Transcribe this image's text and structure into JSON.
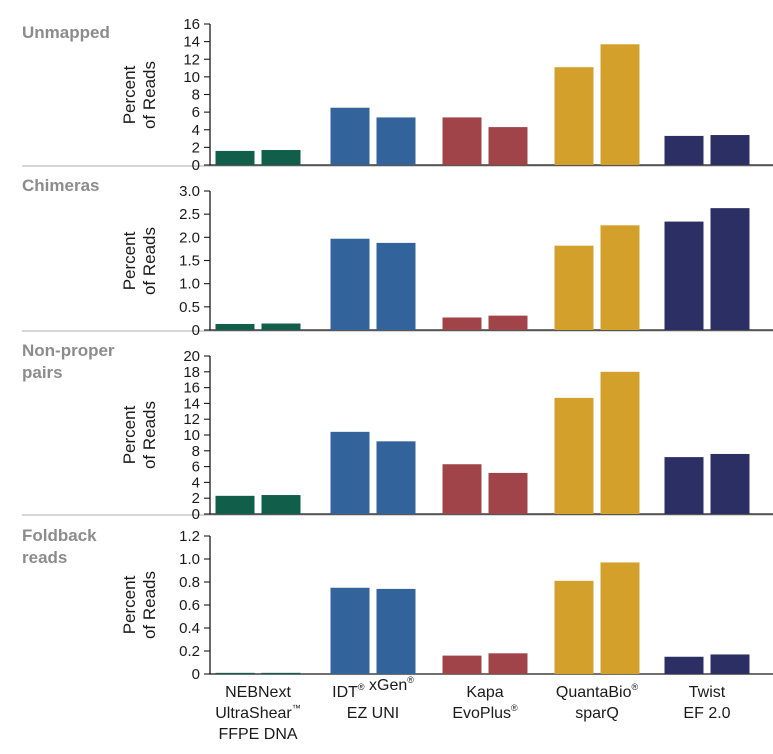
{
  "chart_data": [
    {
      "type": "bar",
      "title": "Unmapped",
      "title_lines": [
        "Unmapped"
      ],
      "ylabel_lines": [
        "Percent",
        "of Reads"
      ],
      "ylim": [
        0,
        16
      ],
      "yticks": [
        "0",
        "2",
        "4",
        "6",
        "8",
        "10",
        "12",
        "14",
        "16"
      ],
      "ytick_values": [
        0,
        2,
        4,
        6,
        8,
        10,
        12,
        14,
        16
      ],
      "values": [
        [
          1.6,
          1.7
        ],
        [
          6.5,
          5.4
        ],
        [
          5.4,
          4.3
        ],
        [
          11.1,
          13.7
        ],
        [
          3.3,
          3.4
        ]
      ]
    },
    {
      "type": "bar",
      "title": "Chimeras",
      "title_lines": [
        "Chimeras"
      ],
      "ylabel_lines": [
        "Percent",
        "of Reads"
      ],
      "ylim": [
        0,
        3.0
      ],
      "yticks": [
        "0",
        "0.5",
        "1.0",
        "1.5",
        "2.0",
        "2.5",
        "3.0"
      ],
      "ytick_values": [
        0,
        0.5,
        1.0,
        1.5,
        2.0,
        2.5,
        3.0
      ],
      "values": [
        [
          0.13,
          0.14
        ],
        [
          1.97,
          1.88
        ],
        [
          0.27,
          0.31
        ],
        [
          1.82,
          2.26
        ],
        [
          2.34,
          2.63
        ]
      ]
    },
    {
      "type": "bar",
      "title": "Non-proper pairs",
      "title_lines": [
        "Non-proper",
        "pairs"
      ],
      "ylabel_lines": [
        "Percent",
        "of Reads"
      ],
      "ylim": [
        0,
        20
      ],
      "yticks": [
        "0",
        "2",
        "4",
        "6",
        "8",
        "10",
        "12",
        "14",
        "16",
        "18",
        "20"
      ],
      "ytick_values": [
        0,
        2,
        4,
        6,
        8,
        10,
        12,
        14,
        16,
        18,
        20
      ],
      "values": [
        [
          2.3,
          2.4
        ],
        [
          10.4,
          9.2
        ],
        [
          6.3,
          5.2
        ],
        [
          14.7,
          18.0
        ],
        [
          7.2,
          7.6
        ]
      ]
    },
    {
      "type": "bar",
      "title": "Foldback reads",
      "title_lines": [
        "Foldback",
        "reads"
      ],
      "ylabel_lines": [
        "Percent",
        "of Reads"
      ],
      "ylim": [
        0,
        1.2
      ],
      "yticks": [
        "0",
        "0.2",
        "0.4",
        "0.6",
        "0.8",
        "1.0",
        "1.2"
      ],
      "ytick_values": [
        0,
        0.2,
        0.4,
        0.6,
        0.8,
        1.0,
        1.2
      ],
      "values": [
        [
          0.01,
          0.01
        ],
        [
          0.75,
          0.74
        ],
        [
          0.16,
          0.18
        ],
        [
          0.81,
          0.97
        ],
        [
          0.15,
          0.17
        ]
      ]
    }
  ],
  "categories": [
    {
      "lines": [
        [
          {
            "t": "NEBNext"
          }
        ],
        [
          {
            "t": "UltraShear"
          },
          {
            "t": "™",
            "sup": true
          }
        ],
        [
          {
            "t": "FFPE DNA"
          }
        ]
      ]
    },
    {
      "lines": [
        [
          {
            "t": "IDT"
          },
          {
            "t": "®",
            "sup": true
          },
          {
            "t": " xGen"
          },
          {
            "t": "®",
            "sup": true
          }
        ],
        [
          {
            "t": "EZ UNI"
          }
        ]
      ]
    },
    {
      "lines": [
        [
          {
            "t": "Kapa"
          }
        ],
        [
          {
            "t": "EvoPlus"
          },
          {
            "t": "®",
            "sup": true
          }
        ]
      ]
    },
    {
      "lines": [
        [
          {
            "t": "QuantaBio"
          },
          {
            "t": "®",
            "sup": true
          }
        ],
        [
          {
            "t": "sparQ"
          }
        ]
      ]
    },
    {
      "lines": [
        [
          {
            "t": "Twist"
          }
        ],
        [
          {
            "t": "EF 2.0"
          }
        ]
      ]
    }
  ],
  "colors": [
    "#115e4b",
    "#32649b",
    "#a0444a",
    "#d3a02b",
    "#2b2f63"
  ]
}
